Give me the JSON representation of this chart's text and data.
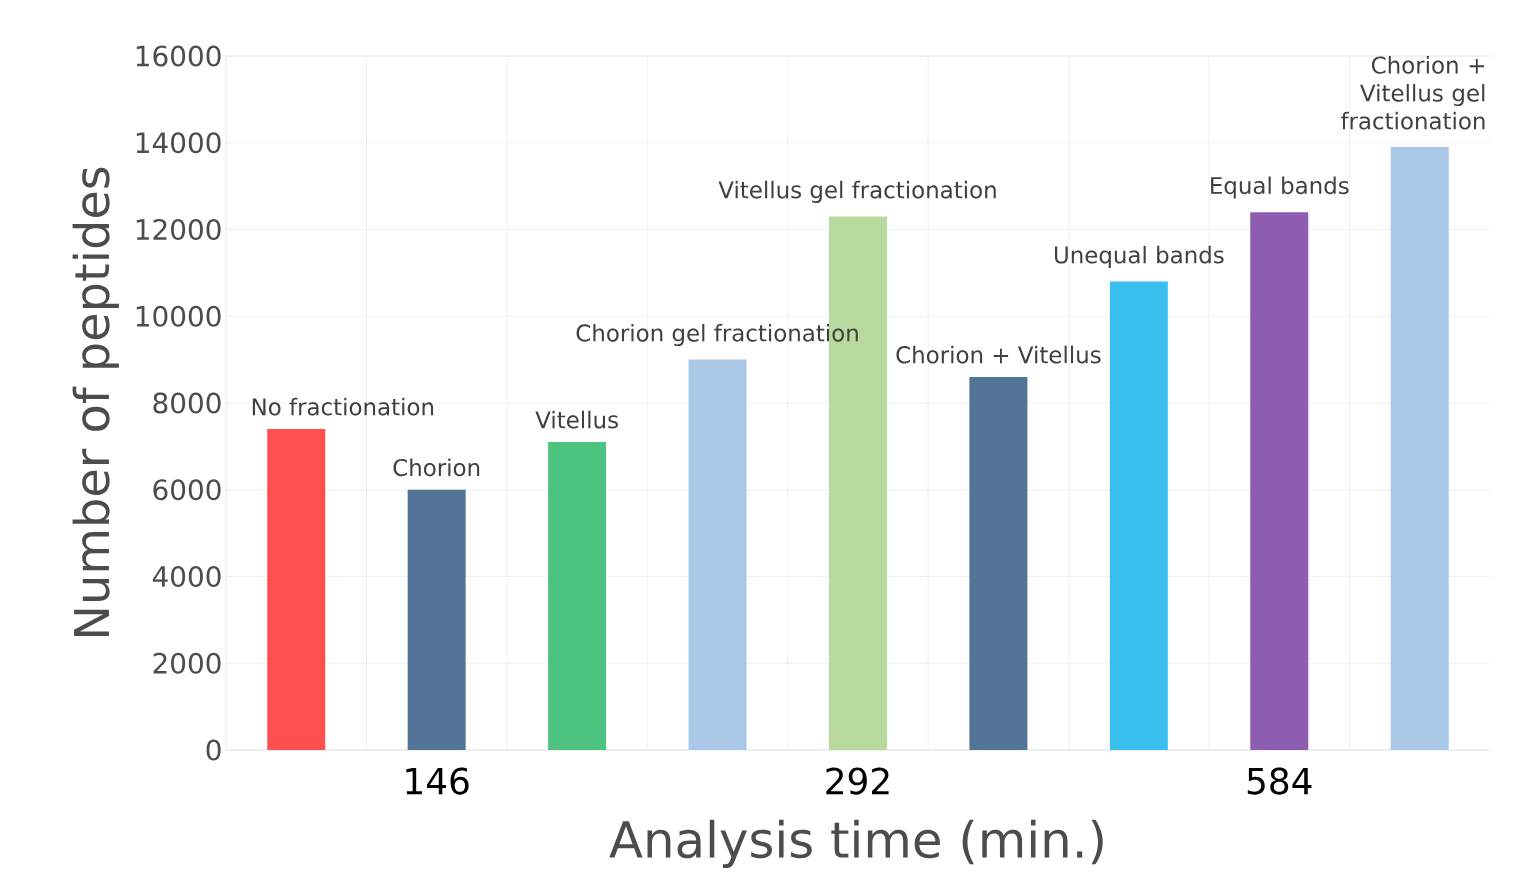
{
  "chart_data": {
    "type": "bar",
    "categories": [
      "No fractionation",
      "Chorion",
      "Vitellus",
      "Chorion gel fractionation",
      "Vitellus gel fractionation",
      "Chorion + Vitellus",
      "Unequal bands",
      "Equal bands",
      "Chorion + Vitellus gel fractionation"
    ],
    "values": [
      7400,
      6000,
      7100,
      9000,
      12300,
      8600,
      10800,
      12400,
      13900
    ],
    "colors": [
      "#ff5050",
      "#527596",
      "#4cc47f",
      "#a9c8e8",
      "#b8da9e",
      "#527596",
      "#3bbfef",
      "#8e5db2",
      "#a9c8e8"
    ],
    "xlabel": "Analysis time (min.)",
    "ylabel": "Number of peptides",
    "ylim": [
      0,
      16000
    ],
    "yticks": [
      0,
      2000,
      4000,
      6000,
      8000,
      10000,
      12000,
      14000,
      16000
    ],
    "grid": true,
    "annotations": [
      "146",
      "292",
      "584"
    ]
  }
}
